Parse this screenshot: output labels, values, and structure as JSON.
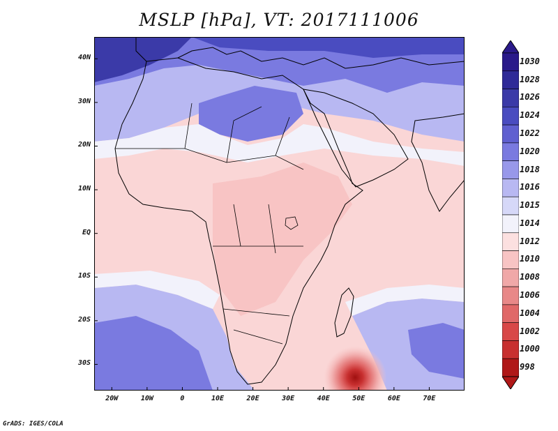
{
  "title": "MSLP [hPa], VT: 2017111006",
  "credit": "GrADS: IGES/COLA",
  "map": {
    "region": "Africa and Arabia",
    "lon_range": [
      -25,
      80
    ],
    "lat_range": [
      -36,
      45
    ],
    "lat_ticks": [
      {
        "lat": 40,
        "label": "40N"
      },
      {
        "lat": 30,
        "label": "30N"
      },
      {
        "lat": 20,
        "label": "20N"
      },
      {
        "lat": 10,
        "label": "10N"
      },
      {
        "lat": 0,
        "label": "EQ"
      },
      {
        "lat": -10,
        "label": "10S"
      },
      {
        "lat": -20,
        "label": "20S"
      },
      {
        "lat": -30,
        "label": "30S"
      }
    ],
    "lon_ticks": [
      {
        "lon": -20,
        "label": "20W"
      },
      {
        "lon": -10,
        "label": "10W"
      },
      {
        "lon": 0,
        "label": "0"
      },
      {
        "lon": 10,
        "label": "10E"
      },
      {
        "lon": 20,
        "label": "20E"
      },
      {
        "lon": 30,
        "label": "30E"
      },
      {
        "lon": 40,
        "label": "40E"
      },
      {
        "lon": 50,
        "label": "50E"
      },
      {
        "lon": 60,
        "label": "60E"
      },
      {
        "lon": 70,
        "label": "70E"
      }
    ],
    "low_center": {
      "lon": 49,
      "lat": -33,
      "value": 998
    }
  },
  "colorbar": {
    "levels": [
      {
        "label": "1030",
        "color": "#2a1a8a"
      },
      {
        "label": "1028",
        "color": "#2f2a98"
      },
      {
        "label": "1026",
        "color": "#3b3aa8"
      },
      {
        "label": "1024",
        "color": "#4a4cc0"
      },
      {
        "label": "1022",
        "color": "#6060d0"
      },
      {
        "label": "1020",
        "color": "#7a7ae0"
      },
      {
        "label": "1018",
        "color": "#9898ea"
      },
      {
        "label": "1016",
        "color": "#b8b8f2"
      },
      {
        "label": "1015",
        "color": "#d6d8f8"
      },
      {
        "label": "1014",
        "color": "#f2f2fb"
      },
      {
        "label": "1012",
        "color": "#fce0e0"
      },
      {
        "label": "1010",
        "color": "#f8c4c4"
      },
      {
        "label": "1008",
        "color": "#f0a8a8"
      },
      {
        "label": "1006",
        "color": "#e88888"
      },
      {
        "label": "1004",
        "color": "#e06868"
      },
      {
        "label": "1002",
        "color": "#d84848"
      },
      {
        "label": "1000",
        "color": "#c83030"
      },
      {
        "label": "998",
        "color": "#b01818"
      }
    ]
  }
}
